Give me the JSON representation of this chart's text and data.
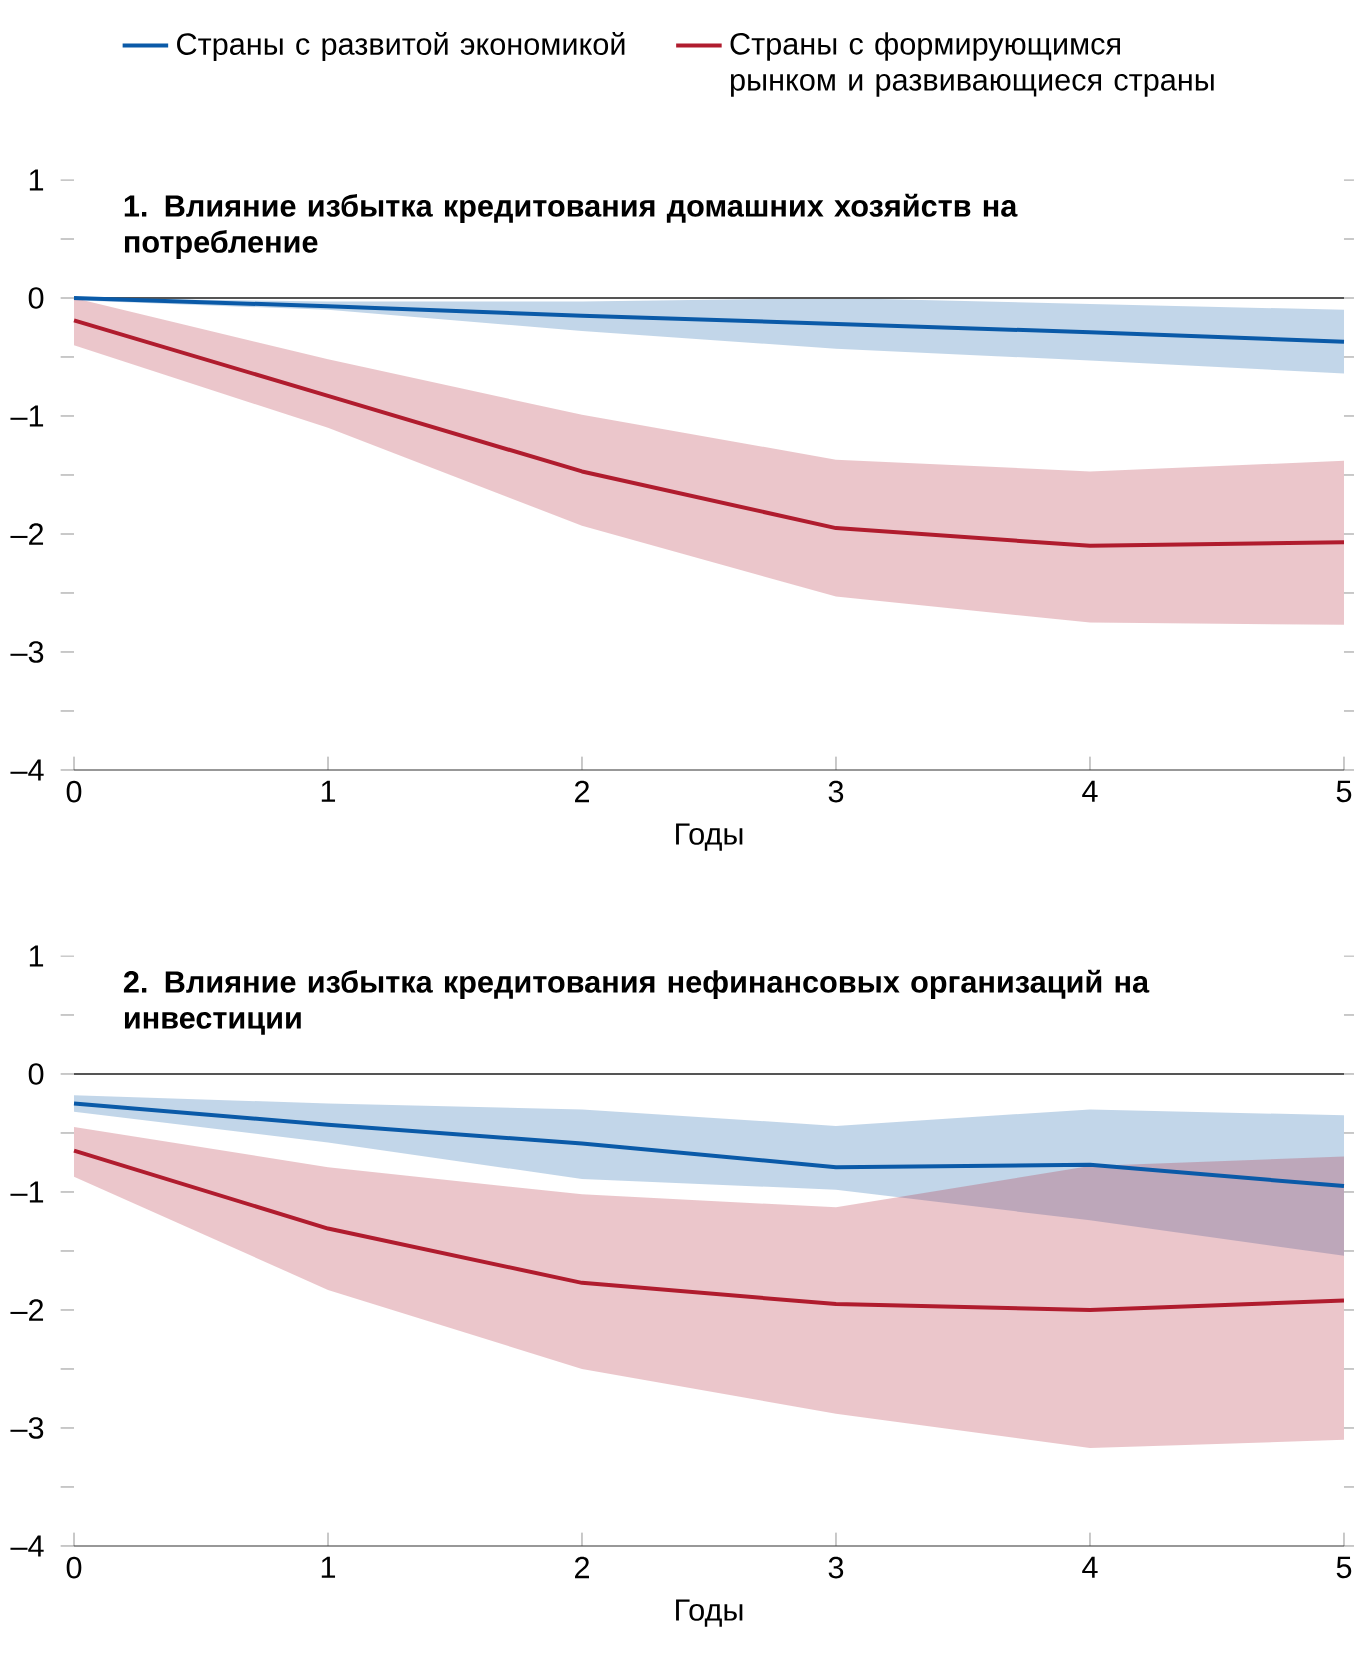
{
  "chart_data": [
    {
      "type": "line",
      "title": "1. Влияние избытка кредитования домашних хозяйств на потребление",
      "xlabel": "Годы",
      "x": [
        0,
        1,
        2,
        3,
        4,
        5
      ],
      "xlim": [
        0,
        5
      ],
      "xticks": [
        0,
        1,
        2,
        3,
        4,
        5
      ],
      "ylim": [
        -4,
        1
      ],
      "yticks": [
        {
          "value": -4,
          "label": "–4"
        },
        {
          "value": -3.5,
          "label": null
        },
        {
          "value": -3,
          "label": "–3"
        },
        {
          "value": -2.5,
          "label": null
        },
        {
          "value": -2,
          "label": "–2"
        },
        {
          "value": -1.5,
          "label": null
        },
        {
          "value": -1,
          "label": "–1"
        },
        {
          "value": -0.5,
          "label": null
        },
        {
          "value": 0,
          "label": "0"
        },
        {
          "value": 0.5,
          "label": null
        },
        {
          "value": 1,
          "label": "1"
        }
      ],
      "legend": "top",
      "grid": false,
      "line_style": "solid",
      "ref_lines": [
        {
          "axis": "y",
          "value": 0,
          "color": "#555555"
        }
      ],
      "series": [
        {
          "name": "Страны с развитой экономикой",
          "color": "#0a5aa8",
          "values": [
            0,
            -0.07,
            -0.15,
            -0.22,
            -0.29,
            -0.37
          ],
          "lower": [
            -0.02,
            -0.1,
            -0.28,
            -0.43,
            -0.53,
            -0.64
          ],
          "upper": [
            0,
            -0.03,
            -0.03,
            0,
            -0.05,
            -0.1
          ]
        },
        {
          "name": "Страны с формирующимся рынком и развивающиеся страны",
          "color": "#b01c2e",
          "values": [
            -0.19,
            -0.83,
            -1.47,
            -1.95,
            -2.1,
            -2.07
          ],
          "lower": [
            -0.4,
            -1.1,
            -1.93,
            -2.53,
            -2.75,
            -2.77
          ],
          "upper": [
            0,
            -0.52,
            -0.99,
            -1.37,
            -1.47,
            -1.38
          ]
        }
      ]
    },
    {
      "type": "line",
      "title": "2. Влияние избытка кредитования нефинансовых организаций на инвестиции",
      "xlabel": "Годы",
      "x": [
        0,
        1,
        2,
        3,
        4,
        5
      ],
      "xlim": [
        0,
        5
      ],
      "xticks": [
        0,
        1,
        2,
        3,
        4,
        5
      ],
      "ylim": [
        -4,
        1
      ],
      "yticks": [
        {
          "value": -4,
          "label": "–4"
        },
        {
          "value": -3.5,
          "label": null
        },
        {
          "value": -3,
          "label": "–3"
        },
        {
          "value": -2.5,
          "label": null
        },
        {
          "value": -2,
          "label": "–2"
        },
        {
          "value": -1.5,
          "label": null
        },
        {
          "value": -1,
          "label": "–1"
        },
        {
          "value": -0.5,
          "label": null
        },
        {
          "value": 0,
          "label": "0"
        },
        {
          "value": 0.5,
          "label": null
        },
        {
          "value": 1,
          "label": "1"
        }
      ],
      "legend": false,
      "grid": false,
      "line_style": "solid",
      "ref_lines": [
        {
          "axis": "y",
          "value": 0,
          "color": "#555555"
        }
      ],
      "series": [
        {
          "color": "#0a5aa8",
          "values": [
            -0.25,
            -0.43,
            -0.59,
            -0.79,
            -0.77,
            -0.95
          ],
          "lower": [
            -0.32,
            -0.58,
            -0.89,
            -0.98,
            -1.24,
            -1.54
          ],
          "upper": [
            -0.18,
            -0.25,
            -0.3,
            -0.44,
            -0.3,
            -0.35
          ]
        },
        {
          "color": "#b01c2e",
          "values": [
            -0.65,
            -1.31,
            -1.77,
            -1.95,
            -2.0,
            -1.92
          ],
          "lower": [
            -0.87,
            -1.83,
            -2.5,
            -2.88,
            -3.17,
            -3.1
          ],
          "upper": [
            -0.45,
            -0.79,
            -1.02,
            -1.13,
            -0.78,
            -0.7
          ]
        }
      ]
    }
  ]
}
